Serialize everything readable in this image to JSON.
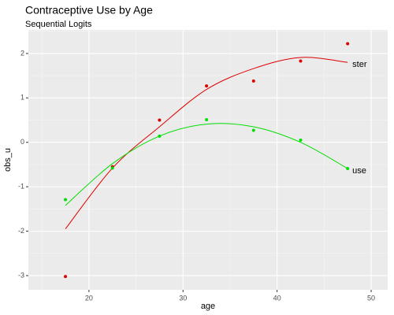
{
  "chart_data": {
    "type": "scatter",
    "title": "Contraceptive Use by Age",
    "subtitle": "Sequential Logits",
    "x_label": "age",
    "y_label": "obs_u",
    "x": [
      17.5,
      22.5,
      27.5,
      32.5,
      37.5,
      42.5,
      47.5
    ],
    "series": [
      {
        "name": "ster",
        "color": "#dd0000",
        "values": [
          -3.02,
          -0.55,
          0.5,
          1.27,
          1.38,
          1.83,
          2.22
        ],
        "fit": [
          -1.95,
          -0.58,
          0.35,
          1.19,
          1.66,
          1.91,
          1.8
        ]
      },
      {
        "name": "use",
        "color": "#00dd00",
        "values": [
          -1.29,
          -0.58,
          0.14,
          0.51,
          0.27,
          0.05,
          -0.59
        ],
        "fit": [
          -1.42,
          -0.48,
          0.14,
          0.41,
          0.35,
          0.0,
          -0.59
        ]
      }
    ],
    "xlim": [
      13.56,
      51.76
    ],
    "ylim": [
      -3.32,
      2.53
    ],
    "xticks": [
      20,
      30,
      40,
      50
    ],
    "yticks": [
      -3,
      -2,
      -1,
      0,
      1,
      2
    ],
    "grid": true
  }
}
